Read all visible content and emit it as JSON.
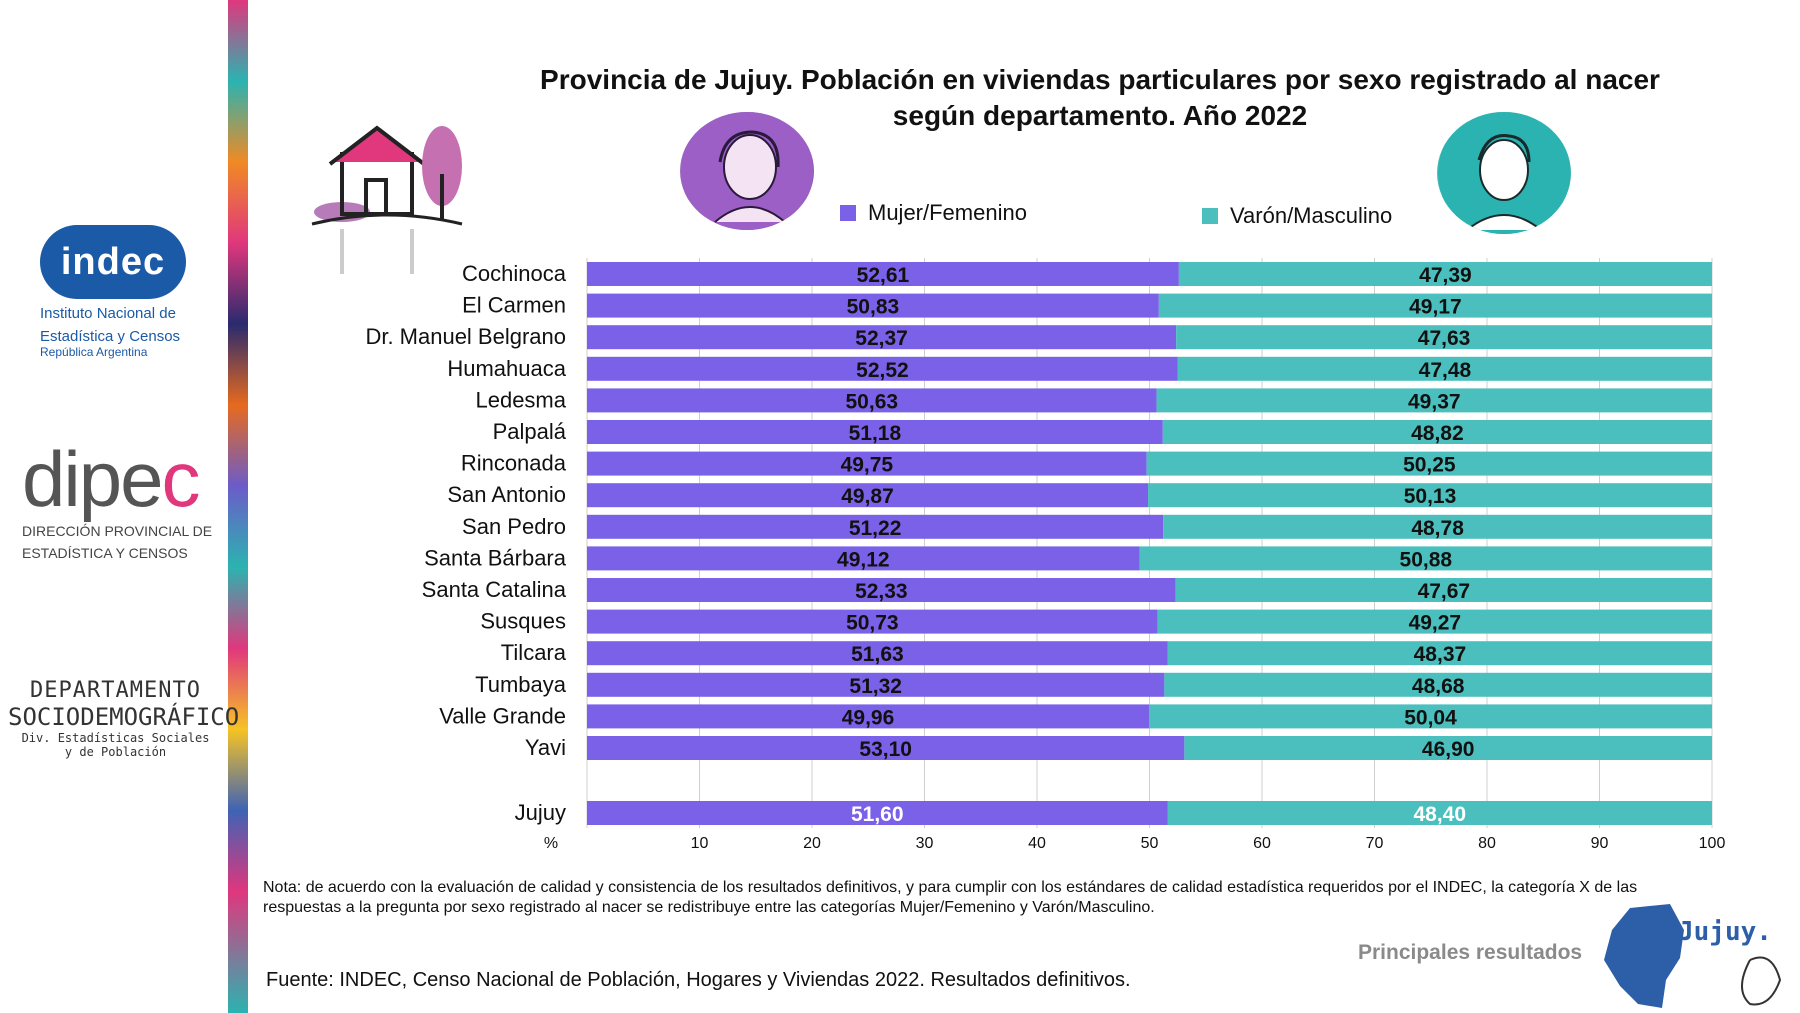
{
  "logos": {
    "indec": {
      "word": "indec",
      "line1": "Instituto Nacional de",
      "line2": "Estadística y Censos",
      "line3": "República Argentina"
    },
    "dipec": {
      "word": "dipe",
      "word_end": "c",
      "line1": "DIRECCIÓN PROVINCIAL DE",
      "line2": "ESTADÍSTICA Y CENSOS"
    },
    "depto": {
      "line1": "DEPARTAMENTO",
      "line2": "SOCIODEMOGRÁFICO",
      "line3": "Div. Estadísticas Sociales",
      "line4": "y de Población"
    }
  },
  "colors": {
    "female": "#7b61e8",
    "male": "#4bbfbd",
    "accent_pink": "#e0377d"
  },
  "chart_data": {
    "type": "bar",
    "orientation": "horizontal",
    "stacked": true,
    "title_line1": "Provincia de Jujuy. Población en viviendas particulares por sexo registrado al nacer",
    "title_line2": "según departamento. Año 2022",
    "categories": [
      "Cochinoca",
      "El Carmen",
      "Dr. Manuel Belgrano",
      "Humahuaca",
      "Ledesma",
      "Palpalá",
      "Rinconada",
      "San Antonio",
      "San Pedro",
      "Santa Bárbara",
      "Santa Catalina",
      "Susques",
      "Tilcara",
      "Tumbaya",
      "Valle Grande",
      "Yavi"
    ],
    "series": [
      {
        "name": "Mujer/Femenino",
        "values": [
          52.61,
          50.83,
          52.37,
          52.52,
          50.63,
          51.18,
          49.75,
          49.87,
          51.22,
          49.12,
          52.33,
          50.73,
          51.63,
          51.32,
          49.96,
          53.1
        ],
        "labels": [
          "52,61",
          "50,83",
          "52,37",
          "52,52",
          "50,63",
          "51,18",
          "49,75",
          "49,87",
          "51,22",
          "49,12",
          "52,33",
          "50,73",
          "51,63",
          "51,32",
          "49,96",
          "53,10"
        ]
      },
      {
        "name": "Varón/Masculino",
        "values": [
          47.39,
          49.17,
          47.63,
          47.48,
          49.37,
          48.82,
          50.25,
          50.13,
          48.78,
          50.88,
          47.67,
          49.27,
          48.37,
          48.68,
          50.04,
          46.9
        ],
        "labels": [
          "47,39",
          "49,17",
          "47,63",
          "47,48",
          "49,37",
          "48,82",
          "50,25",
          "50,13",
          "48,78",
          "50,88",
          "47,67",
          "49,27",
          "48,37",
          "48,68",
          "50,04",
          "46,90"
        ]
      }
    ],
    "total": {
      "category": "Jujuy",
      "female": 51.6,
      "male": 48.4,
      "female_label": "51,60",
      "male_label": "48,40"
    },
    "xlabel": "%",
    "xlim": [
      0,
      100
    ],
    "xticks": [
      10,
      20,
      30,
      40,
      50,
      60,
      70,
      80,
      90,
      100
    ],
    "grid": true,
    "legend": "top"
  },
  "note": "Nota: de acuerdo con la evaluación de calidad y consistencia de los resultados definitivos, y para cumplir con los estándares de calidad estadística requeridos por el INDEC, la categoría X de las respuestas a la pregunta por sexo registrado al nacer se redistribuye entre las categorías Mujer/Femenino y Varón/Masculino.",
  "source": "Fuente: INDEC, Censo Nacional de Población, Hogares y Viviendas 2022. Resultados definitivos.",
  "brand": {
    "results_label": "Principales resultados",
    "province": "Jujuy."
  }
}
